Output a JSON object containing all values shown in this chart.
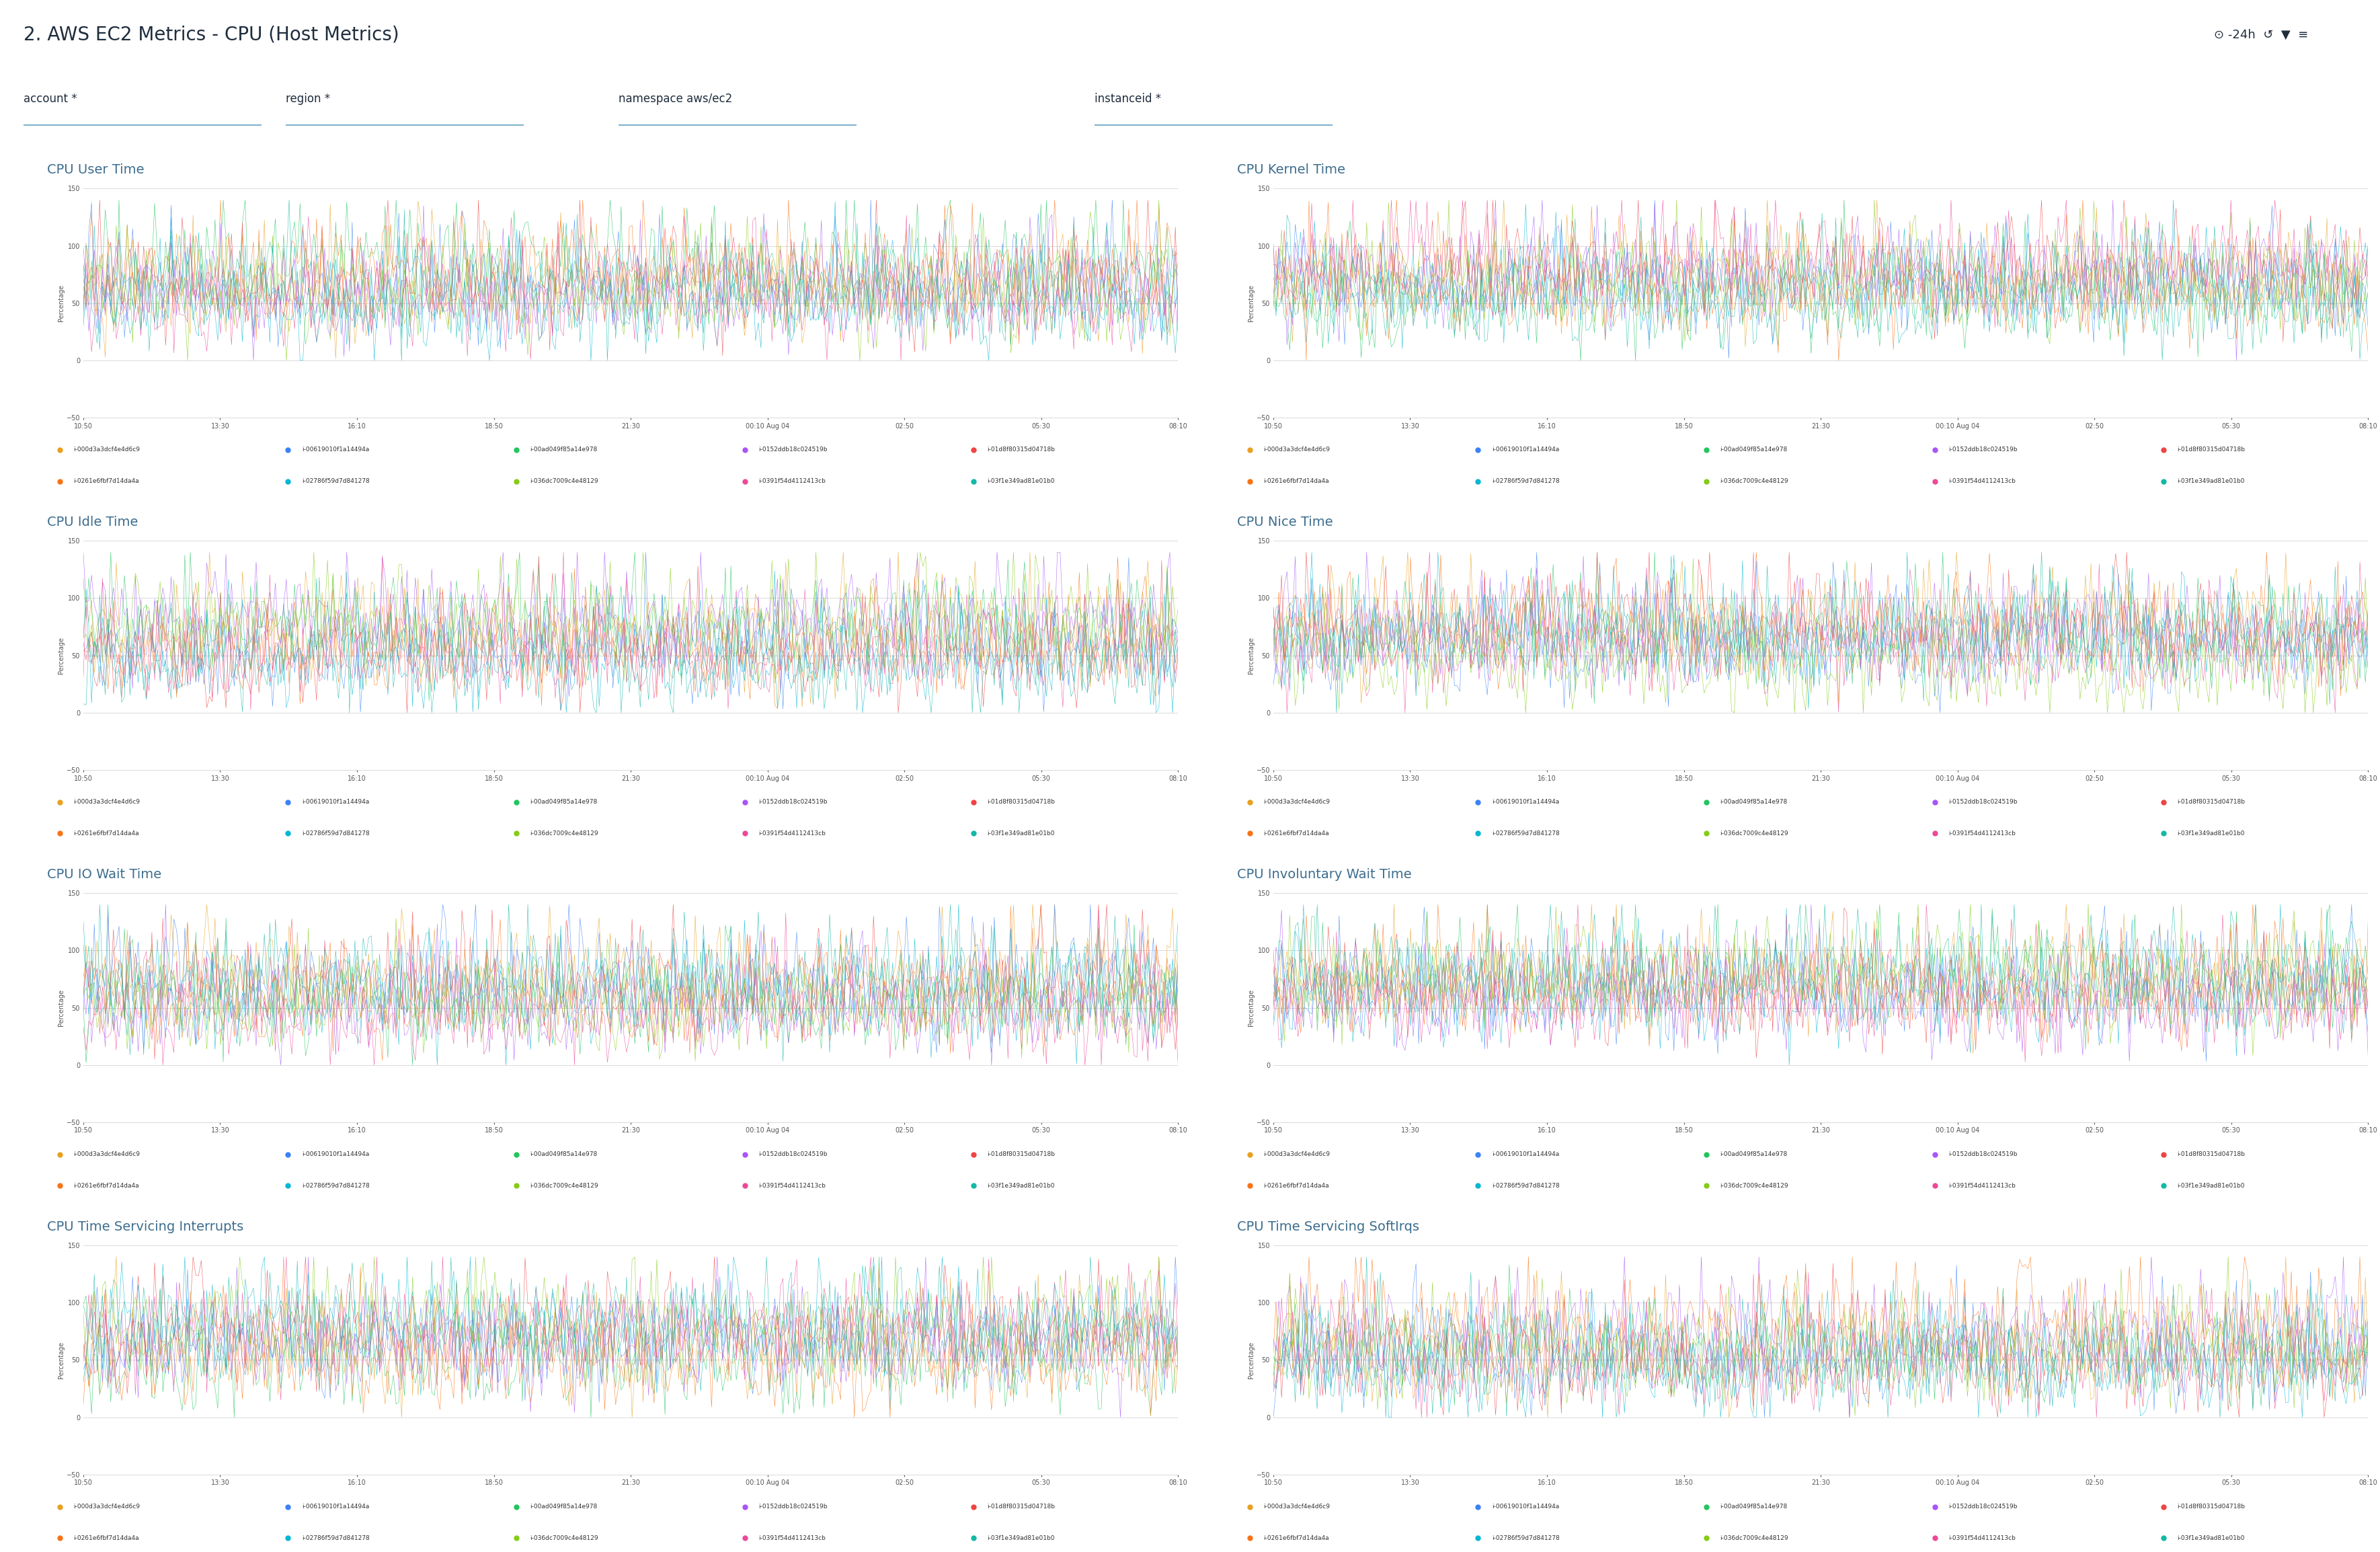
{
  "title": "2. AWS EC2 Metrics - CPU (Host Metrics)",
  "title_color": "#1f2d3d",
  "header_bg": "#e8edf2",
  "filter_bar_bg": "#f5f6f7",
  "body_bg": "#ffffff",
  "filter_labels": [
    "account *",
    "region *",
    "namespace aws/ec2",
    "instanceid *"
  ],
  "panel_titles": [
    "CPU User Time",
    "CPU Kernel Time",
    "CPU Idle Time",
    "CPU Nice Time",
    "CPU IO Wait Time",
    "CPU Involuntary Wait Time",
    "CPU Time Servicing Interrupts",
    "CPU Time Servicing SoftIrqs"
  ],
  "panel_title_color": "#3d6d8e",
  "ylabel": "Percentage",
  "ylim": [
    -50,
    150
  ],
  "yticks": [
    -50,
    0,
    50,
    100,
    150
  ],
  "xtick_labels": [
    "10:50",
    "13:30",
    "16:10",
    "18:50",
    "21:30",
    "00:10 Aug 04",
    "02:50",
    "05:30",
    "08:10"
  ],
  "series_colors": [
    "#e8a020",
    "#3b82f6",
    "#22c55e",
    "#a855f7",
    "#ef4444",
    "#06b6d4",
    "#f97316",
    "#84cc16",
    "#ec4899",
    "#14b8a6",
    "#8b5cf6",
    "#f59e0b",
    "#10b981",
    "#6366f1",
    "#f43f5e",
    "#0ea5e9"
  ],
  "legend_entries": [
    "i-000d3a3dcf4e4d6c9",
    "i-00619010f1a14494a",
    "i-00ad049f85a14e978",
    "i-0152ddb18c024519b",
    "i-01d8f80315d04718b",
    "i-0261e6fbf7d14da4a",
    "i-02786f59d7d841278",
    "i-036dc7009c4e48129",
    "i-0391f54d4112413cb",
    "i-03f1e349ad81e01b0"
  ],
  "legend_dot_colors": [
    "#e8a020",
    "#3b82f6",
    "#22c55e",
    "#a855f7",
    "#ef4444",
    "#f97316",
    "#06b6d4",
    "#84cc16",
    "#ec4899",
    "#14b8a6"
  ],
  "n_series": 10,
  "n_points": 400,
  "seed": 42
}
